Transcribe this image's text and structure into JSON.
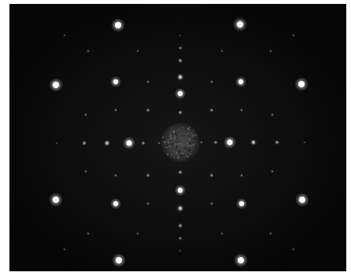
{
  "image": {
    "subject": "electron-diffraction-spot-pattern",
    "background_color": "#0a0a0a",
    "spot_color": "#ffffff",
    "center_disk_color": "#3a3a3a",
    "frame_color": "#ffffff"
  }
}
